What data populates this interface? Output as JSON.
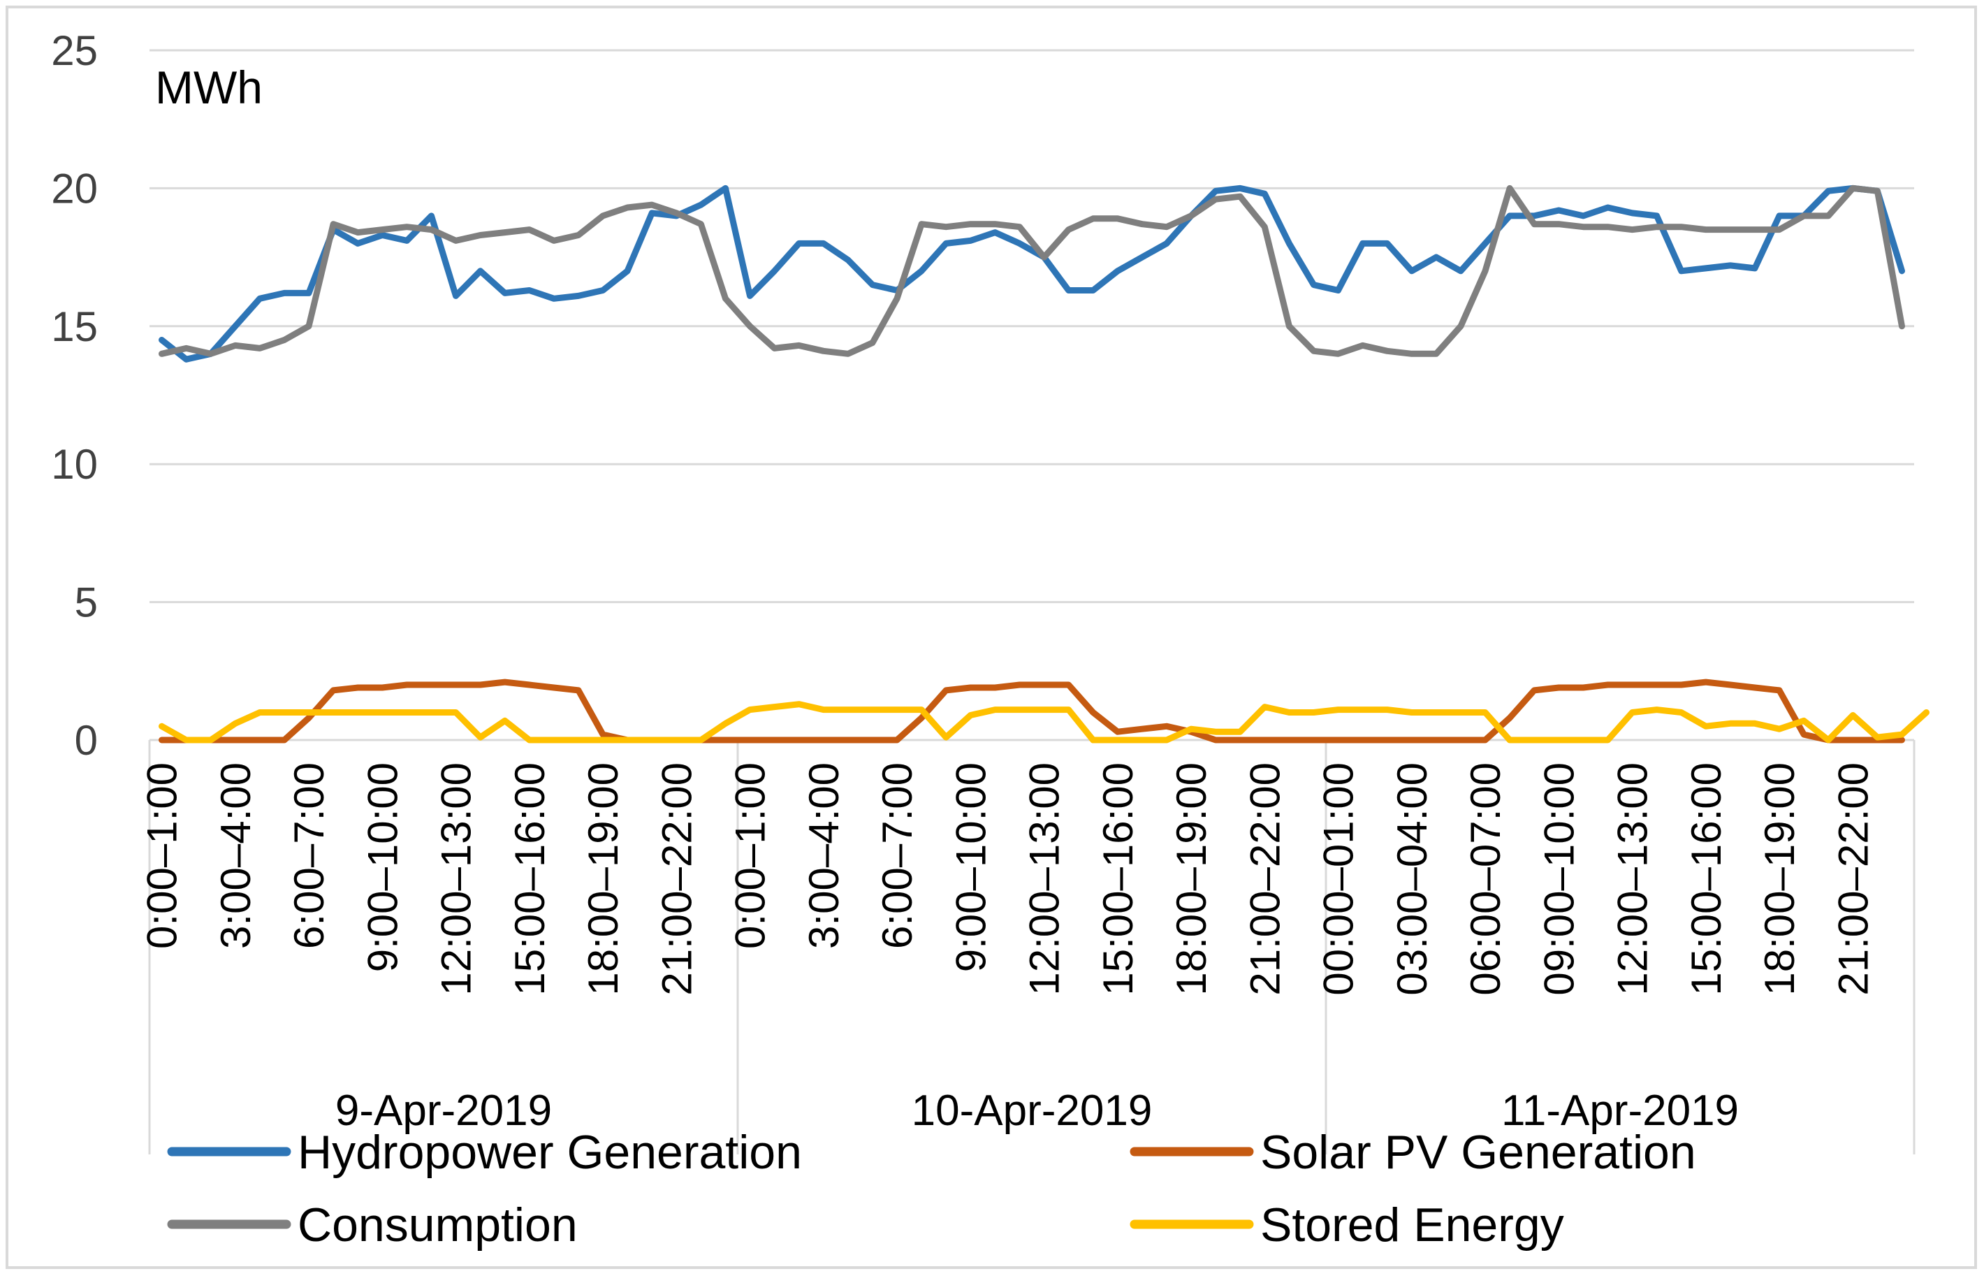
{
  "chart_data": {
    "type": "line",
    "ylabel": "MWh",
    "ylim": [
      0,
      25
    ],
    "yticks": [
      "0",
      "5",
      "10",
      "15",
      "20",
      "25"
    ],
    "grid": "horizontal",
    "legend_position": "bottom",
    "days": [
      "9-Apr-2019",
      "10-Apr-2019",
      "11-Apr-2019"
    ],
    "x_tick_labels": [
      [
        "0:00–1:00",
        "3:00–4:00",
        "6:00–7:00",
        "9:00–10:00",
        "12:00–13:00",
        "15:00–16:00",
        "18:00–19:00",
        "21:00–22:00"
      ],
      [
        "0:00–1:00",
        "3:00–4:00",
        "6:00–7:00",
        "9:00–10:00",
        "12:00–13:00",
        "15:00–16:00",
        "18:00–19:00",
        "21:00–22:00"
      ],
      [
        "00:00–01:00",
        "03:00–04:00",
        "06:00–07:00",
        "09:00–10:00",
        "12:00–13:00",
        "15:00–16:00",
        "18:00–19:00",
        "21:00–22:00"
      ]
    ],
    "series": [
      {
        "name": "Hydropower Generation",
        "color": "#2e75b6",
        "values": [
          14.5,
          13.8,
          14,
          15,
          16,
          16.2,
          16.2,
          18.5,
          18,
          18.3,
          18.1,
          19,
          16.1,
          17,
          16.2,
          16.3,
          16,
          16.1,
          16.3,
          17,
          19.1,
          19,
          19.4,
          20,
          16.1,
          17,
          18,
          18,
          17.4,
          16.5,
          16.3,
          17,
          18,
          18.1,
          18.4,
          18,
          17.5,
          16.3,
          16.3,
          17,
          17.5,
          18,
          19,
          19.9,
          20,
          19.8,
          18,
          16.5,
          16.3,
          18,
          18,
          17,
          17.5,
          17,
          18,
          19,
          19,
          19.2,
          19,
          19.3,
          19.1,
          19,
          17,
          17.1,
          17.2,
          17.1,
          19,
          19,
          19.9,
          20,
          19.9,
          17
        ]
      },
      {
        "name": "Solar PV Generation",
        "color": "#c55a11",
        "values": [
          0,
          0,
          0,
          0,
          0,
          0,
          0.8,
          1.8,
          1.9,
          1.9,
          2,
          2,
          2,
          2,
          2.1,
          2,
          1.9,
          1.8,
          0.2,
          0,
          0,
          0,
          0,
          0,
          0,
          0,
          0,
          0,
          0,
          0,
          0,
          0.8,
          1.8,
          1.9,
          1.9,
          2,
          2,
          2,
          1,
          0.3,
          0.4,
          0.5,
          0.3,
          0,
          0,
          0,
          0,
          0,
          0,
          0,
          0,
          0,
          0,
          0,
          0,
          0.8,
          1.8,
          1.9,
          1.9,
          2,
          2,
          2,
          2,
          2.1,
          2,
          1.9,
          1.8,
          0.2,
          0,
          0,
          0,
          0
        ]
      },
      {
        "name": "Consumption",
        "color": "#7f7f7f",
        "values": [
          14,
          14.2,
          14,
          14.3,
          14.2,
          14.5,
          15,
          18.7,
          18.4,
          18.5,
          18.6,
          18.5,
          18.1,
          18.3,
          18.4,
          18.5,
          18.1,
          18.3,
          19,
          19.3,
          19.4,
          19.1,
          18.7,
          16,
          15,
          14.2,
          14.3,
          14.1,
          14,
          14.4,
          16,
          18.7,
          18.6,
          18.7,
          18.7,
          18.6,
          17.5,
          18.5,
          18.9,
          18.9,
          18.7,
          18.6,
          19,
          19.6,
          19.7,
          18.6,
          15,
          14.1,
          14,
          14.3,
          14.1,
          14,
          14,
          15,
          17,
          20,
          18.7,
          18.7,
          18.6,
          18.6,
          18.5,
          18.6,
          18.6,
          18.5,
          18.5,
          18.5,
          18.5,
          19,
          19,
          20,
          19.9,
          15
        ]
      },
      {
        "name": "Stored Energy",
        "color": "#ffc000",
        "values": [
          0.5,
          0,
          0,
          0.6,
          1,
          1,
          1,
          1,
          1,
          1,
          1,
          1,
          1,
          0.1,
          0.7,
          0,
          0,
          0,
          0,
          0,
          0,
          0,
          0,
          0.6,
          1.1,
          1.2,
          1.3,
          1.1,
          1.1,
          1.1,
          1.1,
          1.1,
          0.1,
          0.9,
          1.1,
          1.1,
          1.1,
          1.1,
          0,
          0,
          0,
          0,
          0.4,
          0.3,
          0.3,
          1.2,
          1,
          1,
          1.1,
          1.1,
          1.1,
          1,
          1,
          1,
          1,
          0,
          0,
          0,
          0,
          0,
          1,
          1.1,
          1,
          0.5,
          0.6,
          0.6,
          0.4,
          0.7,
          0,
          0.9,
          0.1,
          0.2,
          1
        ]
      }
    ]
  }
}
